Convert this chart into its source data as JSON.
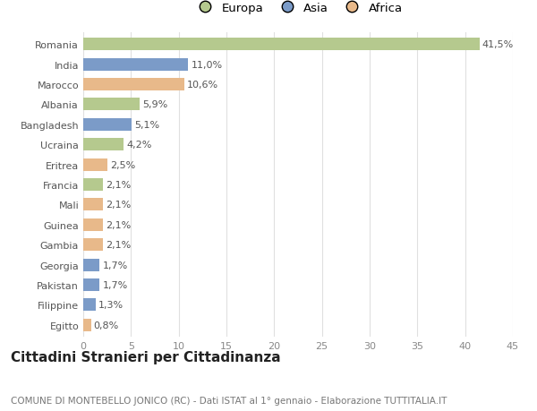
{
  "countries": [
    "Romania",
    "India",
    "Marocco",
    "Albania",
    "Bangladesh",
    "Ucraina",
    "Eritrea",
    "Francia",
    "Mali",
    "Guinea",
    "Gambia",
    "Georgia",
    "Pakistan",
    "Filippine",
    "Egitto"
  ],
  "values": [
    41.5,
    11.0,
    10.6,
    5.9,
    5.1,
    4.2,
    2.5,
    2.1,
    2.1,
    2.1,
    2.1,
    1.7,
    1.7,
    1.3,
    0.8
  ],
  "labels": [
    "41,5%",
    "11,0%",
    "10,6%",
    "5,9%",
    "5,1%",
    "4,2%",
    "2,5%",
    "2,1%",
    "2,1%",
    "2,1%",
    "2,1%",
    "1,7%",
    "1,7%",
    "1,3%",
    "0,8%"
  ],
  "continents": [
    "Europa",
    "Asia",
    "Africa",
    "Europa",
    "Asia",
    "Europa",
    "Africa",
    "Europa",
    "Africa",
    "Africa",
    "Africa",
    "Asia",
    "Asia",
    "Asia",
    "Africa"
  ],
  "colors": {
    "Europa": "#b5c98e",
    "Asia": "#7b9bc8",
    "Africa": "#e8b98a"
  },
  "legend_order": [
    "Europa",
    "Asia",
    "Africa"
  ],
  "title": "Cittadini Stranieri per Cittadinanza",
  "subtitle": "COMUNE DI MONTEBELLO JONICO (RC) - Dati ISTAT al 1° gennaio - Elaborazione TUTTITALIA.IT",
  "xlim": [
    0,
    45
  ],
  "xticks": [
    0,
    5,
    10,
    15,
    20,
    25,
    30,
    35,
    40,
    45
  ],
  "background_color": "#ffffff",
  "grid_color": "#e0e0e0",
  "bar_height": 0.62,
  "label_fontsize": 8.0,
  "tick_fontsize": 8.0,
  "title_fontsize": 11,
  "subtitle_fontsize": 7.5
}
